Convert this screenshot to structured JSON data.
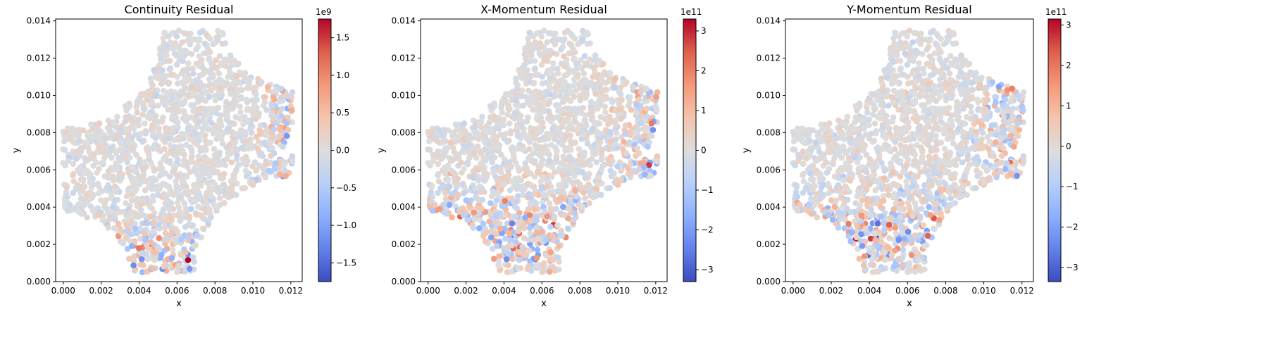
{
  "colors": {
    "background": "#ffffff",
    "colormap": [
      "#3b4cc0",
      "#6282ea",
      "#8db0fe",
      "#b8d0f9",
      "#dddddd",
      "#f5c4ac",
      "#f4987a",
      "#de604d",
      "#b40426"
    ],
    "axis": "#000000"
  },
  "chart_data": [
    {
      "type": "scatter",
      "title": "Continuity Residual",
      "xlabel": "x",
      "ylabel": "y",
      "xlim": [
        -0.0004,
        0.0126
      ],
      "ylim": [
        0.0,
        0.0141
      ],
      "x_ticks": [
        "0.000",
        "0.002",
        "0.004",
        "0.006",
        "0.008",
        "0.010",
        "0.012"
      ],
      "y_ticks": [
        "0.000",
        "0.002",
        "0.004",
        "0.006",
        "0.008",
        "0.010",
        "0.012",
        "0.014"
      ],
      "domain_shape": "cross-shaped channel region with concave circular cut-outs at top-left and bottom-right; points colored by residual value",
      "colorbar": {
        "label_multiplier": "1e9",
        "range": [
          -1.75,
          1.75
        ],
        "ticks": [
          "-1.5",
          "-1.0",
          "-0.5",
          "0.0",
          "0.5",
          "1.0",
          "1.5"
        ],
        "colormap": "coolwarm"
      },
      "high_magnitude_region": "bottom-centre near x≈0.004–0.008, y≈0.001–0.003"
    },
    {
      "type": "scatter",
      "title": "X-Momentum Residual",
      "xlabel": "x",
      "ylabel": "y",
      "xlim": [
        -0.0004,
        0.0126
      ],
      "ylim": [
        0.0,
        0.0141
      ],
      "x_ticks": [
        "0.000",
        "0.002",
        "0.004",
        "0.006",
        "0.008",
        "0.010",
        "0.012"
      ],
      "y_ticks": [
        "0.000",
        "0.002",
        "0.004",
        "0.006",
        "0.008",
        "0.010",
        "0.012",
        "0.014"
      ],
      "colorbar": {
        "label_multiplier": "1e11",
        "range": [
          -3.3,
          3.3
        ],
        "ticks": [
          "-3",
          "-2",
          "-1",
          "0",
          "1",
          "2",
          "3"
        ],
        "colormap": "coolwarm"
      },
      "high_magnitude_region": "lower half and right edge, x≈0.002–0.012, y≈0.001–0.006"
    },
    {
      "type": "scatter",
      "title": "Y-Momentum Residual",
      "xlabel": "x",
      "ylabel": "y",
      "xlim": [
        -0.0004,
        0.0126
      ],
      "ylim": [
        0.0,
        0.0141
      ],
      "x_ticks": [
        "0.000",
        "0.002",
        "0.004",
        "0.006",
        "0.008",
        "0.010",
        "0.012"
      ],
      "y_ticks": [
        "0.000",
        "0.002",
        "0.004",
        "0.006",
        "0.008",
        "0.010",
        "0.012",
        "0.014"
      ],
      "colorbar": {
        "label_multiplier": "1e11",
        "range": [
          -3.35,
          3.15
        ],
        "ticks": [
          "-3",
          "-2",
          "-1",
          "0",
          "1",
          "2",
          "3"
        ],
        "colormap": "coolwarm"
      },
      "high_magnitude_region": "lower region x≈0.002–0.009, y≈0.001–0.004 and right edge"
    }
  ]
}
